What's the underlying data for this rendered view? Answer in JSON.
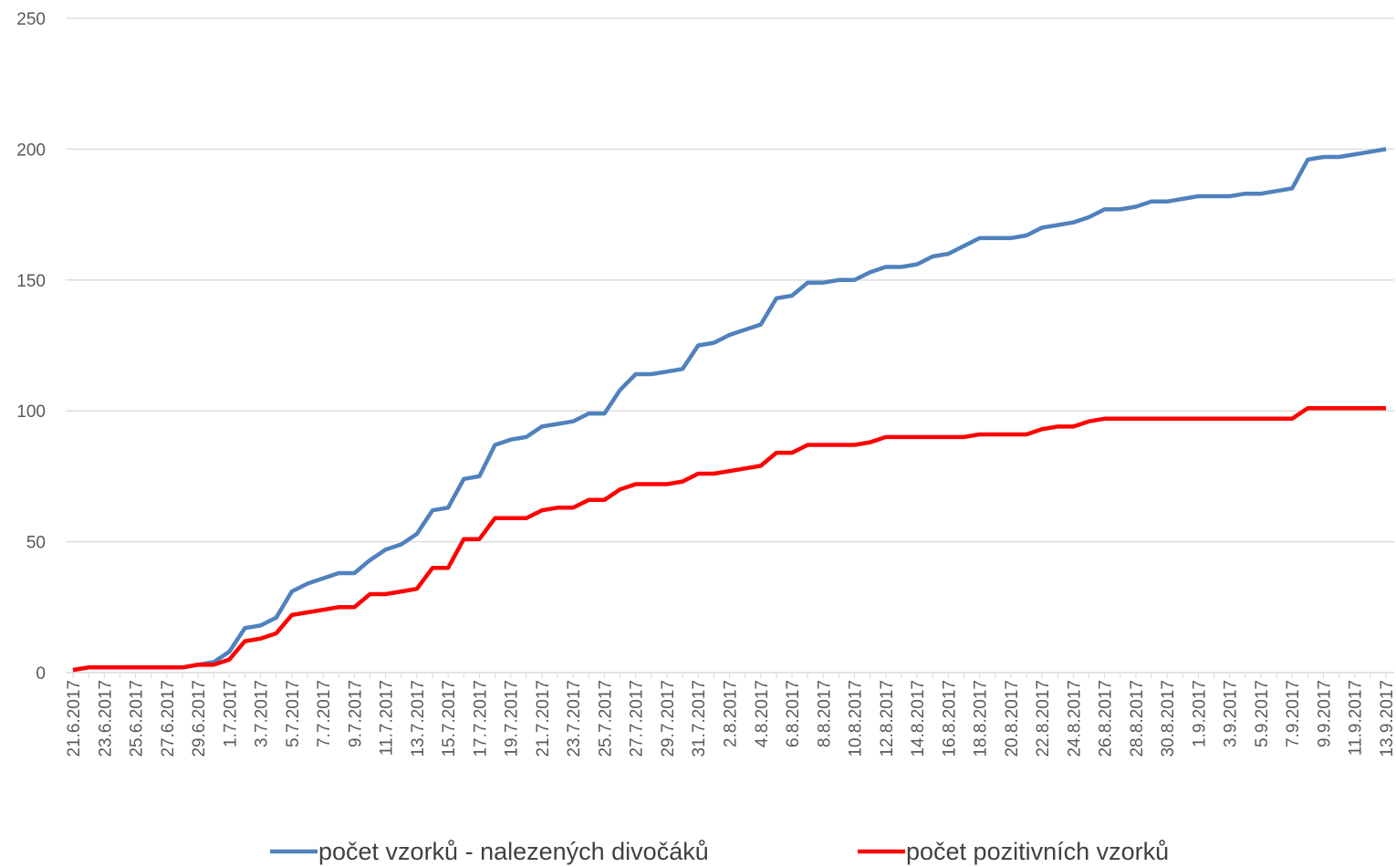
{
  "chart_data": {
    "type": "line",
    "categories": [
      "21.6.2017",
      null,
      "23.6.2017",
      null,
      "25.6.2017",
      null,
      "27.6.2017",
      null,
      "29.6.2017",
      null,
      "1.7.2017",
      null,
      "3.7.2017",
      null,
      "5.7.2017",
      null,
      "7.7.2017",
      null,
      "9.7.2017",
      null,
      "11.7.2017",
      null,
      "13.7.2017",
      null,
      "15.7.2017",
      null,
      "17.7.2017",
      null,
      "19.7.2017",
      null,
      "21.7.2017",
      null,
      "23.7.2017",
      null,
      "25.7.2017",
      null,
      "27.7.2017",
      null,
      "29.7.2017",
      null,
      "31.7.2017",
      null,
      "2.8.2017",
      null,
      "4.8.2017",
      null,
      "6.8.2017",
      null,
      "8.8.2017",
      null,
      "10.8.2017",
      null,
      "12.8.2017",
      null,
      "14.8.2017",
      null,
      "16.8.2017",
      null,
      "18.8.2017",
      null,
      "20.8.2017",
      null,
      "22.8.2017",
      null,
      "24.8.2017",
      null,
      "26.8.2017",
      null,
      "28.8.2017",
      null,
      "30.8.2017",
      null,
      "1.9.2017",
      null,
      "3.9.2017",
      null,
      "5.9.2017",
      null,
      "7.9.2017",
      null,
      "9.9.2017",
      null,
      "11.9.2017",
      null,
      "13.9.2017"
    ],
    "series": [
      {
        "name": "počet vzorků -  nalezených divočáků",
        "color": "#4f81bd",
        "values": [
          1,
          2,
          2,
          2,
          2,
          2,
          2,
          2,
          3,
          4,
          8,
          17,
          18,
          21,
          31,
          34,
          36,
          38,
          38,
          43,
          47,
          49,
          53,
          62,
          63,
          74,
          75,
          87,
          89,
          90,
          94,
          95,
          96,
          99,
          99,
          108,
          114,
          114,
          115,
          116,
          125,
          126,
          129,
          131,
          133,
          143,
          144,
          149,
          149,
          150,
          150,
          153,
          155,
          155,
          156,
          159,
          160,
          163,
          166,
          166,
          166,
          167,
          170,
          171,
          172,
          174,
          177,
          177,
          178,
          180,
          180,
          181,
          182,
          182,
          182,
          183,
          183,
          184,
          185,
          196,
          197,
          197,
          198,
          199,
          200
        ]
      },
      {
        "name": "počet pozitivních vzorků",
        "color": "#ff0000",
        "values": [
          1,
          2,
          2,
          2,
          2,
          2,
          2,
          2,
          3,
          3,
          5,
          12,
          13,
          15,
          22,
          23,
          24,
          25,
          25,
          30,
          30,
          31,
          32,
          40,
          40,
          51,
          51,
          59,
          59,
          59,
          62,
          63,
          63,
          66,
          66,
          70,
          72,
          72,
          72,
          73,
          76,
          76,
          77,
          78,
          79,
          84,
          84,
          87,
          87,
          87,
          87,
          88,
          90,
          90,
          90,
          90,
          90,
          90,
          91,
          91,
          91,
          91,
          93,
          94,
          94,
          96,
          97,
          97,
          97,
          97,
          97,
          97,
          97,
          97,
          97,
          97,
          97,
          97,
          97,
          101,
          101,
          101,
          101,
          101,
          101
        ]
      }
    ],
    "ylim": [
      0,
      250
    ],
    "yticks": [
      0,
      50,
      100,
      150,
      200,
      250
    ],
    "grid": true,
    "legend": "bottom"
  }
}
